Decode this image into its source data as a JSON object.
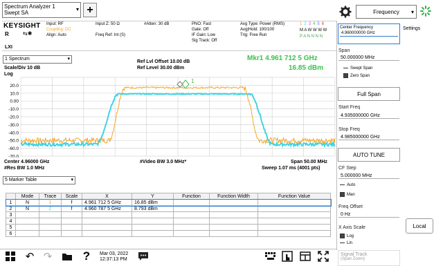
{
  "window": {
    "title": "Spectrum Analyzer 1",
    "subtitle": "Swept SA",
    "add_label": "+"
  },
  "status_bar": {
    "brand": "KEYSIGHT",
    "input_line": "Input: RF",
    "coupling": "Coupling: DC",
    "align": "Align: Auto",
    "input_z": "Input Z: 50 Ω",
    "freq_ref": "Freq Ref: Int (S)",
    "atten": "#Atten: 30 dB",
    "pno": "PNO: Fast",
    "gate": "Gate: Off",
    "if_gain": "IF Gain: Low",
    "sig_track": "Sig Track: Off",
    "avg_type": "Avg Type: Power (RMS)",
    "avg_hold": "Avg|Hold: 100/100",
    "trig": "Trig: Free Run",
    "trace_nums": [
      "1",
      "2",
      "3",
      "4",
      "5",
      "6"
    ],
    "trace_row2": "M A W W W W",
    "trace_row3": "P A N N N N",
    "rl_label": "R",
    "lxi_label": "LXI"
  },
  "graph": {
    "window_select": "1 Spectrum",
    "scale_div": "Scale/Div 10 dB",
    "log_label": "Log",
    "ref_offset": "Ref Lvl Offset 10.00 dB",
    "ref_level": "Ref Level 30.00 dBm",
    "marker_freq": "Mkr1  4.961 712 5 GHz",
    "marker_amp": "16.85 dBm",
    "marker_label": "1",
    "center": "Center 4.96000 GHz",
    "res_bw": "#Res BW 1.0 MHz",
    "video_bw": "#Video BW 3.0 MHz*",
    "span": "Span 50.00 MHz",
    "sweep": "Sweep 1.07 ms (4001 pts)",
    "y_ticks": [
      "20.0",
      "10.0",
      "0.00",
      "-10.0",
      "-20.0",
      "-30.0",
      "-40.0",
      "-50.0",
      "-60.0",
      "-70.0"
    ],
    "trace_colors": {
      "trace1": "#f5a623",
      "trace2": "#3fd3e6"
    },
    "trace1_peak_dbm": 17,
    "trace1_floor_dbm": -50,
    "trace2_peak_dbm": 9,
    "trace2_floor_dbm": -55
  },
  "marker_table": {
    "select": "5 Marker Table",
    "headers": [
      "",
      "Mode",
      "Trace",
      "Scale",
      "X",
      "Y",
      "Function",
      "Function Width",
      "Function Value"
    ],
    "rows": [
      [
        "1",
        "N",
        "1",
        "f",
        "4.961 712 5 GHz",
        "16.85 dBm",
        "",
        "",
        ""
      ],
      [
        "2",
        "N",
        "2",
        "f",
        "4.960 787 5 GHz",
        "8.793 dBm",
        "",
        "",
        ""
      ],
      [
        "3",
        "",
        "",
        "",
        "",
        "",
        "",
        "",
        ""
      ],
      [
        "4",
        "",
        "",
        "",
        "",
        "",
        "",
        "",
        ""
      ],
      [
        "5",
        "",
        "",
        "",
        "",
        "",
        "",
        "",
        ""
      ],
      [
        "6",
        "",
        "",
        "",
        "",
        "",
        "",
        "",
        ""
      ]
    ]
  },
  "right_panel": {
    "menu_select": "Frequency",
    "settings_tab": "Settings",
    "center_freq_label": "Center Frequency",
    "center_freq_value": "4.960000000 GHz",
    "span_label": "Span",
    "span_value": "50.000000 MHz",
    "swept_span": "Swept Span",
    "zero_span": "Zero Span",
    "full_span": "Full Span",
    "start_freq_label": "Start Freq",
    "start_freq_value": "4.935000000 GHz",
    "stop_freq_label": "Stop Freq",
    "stop_freq_value": "4.985000000 GHz",
    "auto_tune": "AUTO TUNE",
    "cf_step_label": "CF Step",
    "cf_step_value": "5.000000 MHz",
    "auto": "Auto",
    "man": "Man",
    "freq_offset_label": "Freq Offset",
    "freq_offset_value": "0 Hz",
    "x_axis_label": "X Axis Scale",
    "log": "Log",
    "lin": "Lin",
    "signal_track": "Signal Track",
    "signal_track_sub": "(Span Zoom)",
    "local": "Local"
  },
  "taskbar": {
    "date": "Mar 03, 2022",
    "time": "12:37:13 PM"
  }
}
